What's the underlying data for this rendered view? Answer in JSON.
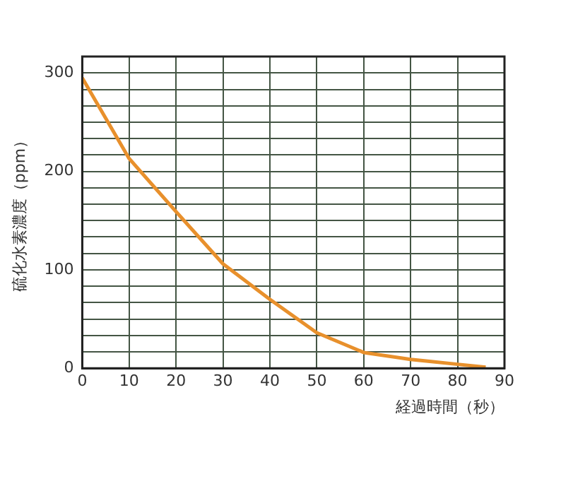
{
  "chart_data": {
    "type": "line",
    "xlabel": "経過時間（秒）",
    "ylabel": "硫化水素濃度（ppm）",
    "x": [
      0,
      10,
      20,
      30,
      40,
      50,
      60,
      70,
      80,
      86
    ],
    "series": [
      {
        "color": "#e8902c",
        "values": [
          295,
          213,
          159,
          106,
          70,
          36,
          16,
          9,
          4,
          1
        ]
      }
    ],
    "xlim": [
      0,
      90
    ],
    "xticks": [
      0,
      10,
      20,
      30,
      40,
      50,
      60,
      70,
      80,
      90
    ],
    "ylim": [
      0,
      316.7
    ],
    "yticks": [
      0,
      {
        "value": 16.7,
        "label": null
      },
      {
        "value": 33.3,
        "label": null
      },
      {
        "value": 50,
        "label": null
      },
      {
        "value": 66.7,
        "label": null
      },
      {
        "value": 83.3,
        "label": null
      },
      100,
      {
        "value": 116.7,
        "label": null
      },
      {
        "value": 133.3,
        "label": null
      },
      {
        "value": 150,
        "label": null
      },
      {
        "value": 166.7,
        "label": null
      },
      {
        "value": 183.3,
        "label": null
      },
      200,
      {
        "value": 216.7,
        "label": null
      },
      {
        "value": 233.3,
        "label": null
      },
      {
        "value": 250,
        "label": null
      },
      {
        "value": 266.7,
        "label": null
      },
      {
        "value": 283.3,
        "label": null
      },
      300
    ],
    "grid": true,
    "legend": false,
    "marker": "none",
    "line_style": "solid"
  }
}
